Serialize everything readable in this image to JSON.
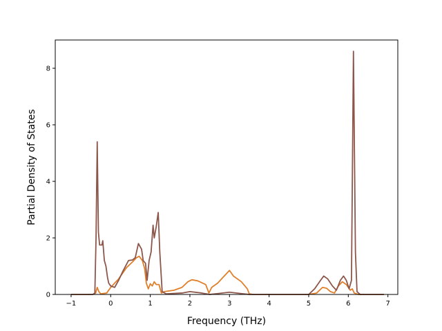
{
  "chart_data": {
    "type": "line",
    "title": "",
    "xlabel": "Frequency (THz)",
    "ylabel": "Partial Density of States",
    "xlim": [
      -1.4,
      7.25
    ],
    "ylim": [
      0,
      9.0
    ],
    "xticks": [
      -1,
      0,
      1,
      2,
      3,
      4,
      5,
      6,
      7
    ],
    "yticks": [
      0,
      2,
      4,
      6,
      8
    ],
    "grid": false,
    "legend": "none",
    "series": [
      {
        "color": "#e07f2a",
        "points": [
          [
            -1.0,
            0
          ],
          [
            -0.45,
            0
          ],
          [
            -0.38,
            0.05
          ],
          [
            -0.34,
            0.25
          ],
          [
            -0.3,
            0.1
          ],
          [
            -0.25,
            0.02
          ],
          [
            -0.1,
            0.05
          ],
          [
            0.0,
            0.25
          ],
          [
            0.2,
            0.55
          ],
          [
            0.4,
            0.95
          ],
          [
            0.55,
            1.15
          ],
          [
            0.65,
            1.3
          ],
          [
            0.72,
            1.35
          ],
          [
            0.8,
            1.2
          ],
          [
            0.86,
            0.9
          ],
          [
            0.9,
            0.4
          ],
          [
            0.95,
            0.2
          ],
          [
            1.0,
            0.38
          ],
          [
            1.05,
            0.3
          ],
          [
            1.1,
            0.45
          ],
          [
            1.15,
            0.35
          ],
          [
            1.22,
            0.35
          ],
          [
            1.28,
            0.05
          ],
          [
            1.35,
            0.1
          ],
          [
            1.6,
            0.15
          ],
          [
            1.8,
            0.25
          ],
          [
            1.95,
            0.45
          ],
          [
            2.05,
            0.52
          ],
          [
            2.2,
            0.48
          ],
          [
            2.4,
            0.35
          ],
          [
            2.48,
            0.05
          ],
          [
            2.55,
            0.25
          ],
          [
            2.7,
            0.4
          ],
          [
            2.9,
            0.7
          ],
          [
            3.0,
            0.85
          ],
          [
            3.1,
            0.65
          ],
          [
            3.3,
            0.45
          ],
          [
            3.45,
            0.2
          ],
          [
            3.5,
            0.02
          ],
          [
            3.6,
            0
          ],
          [
            5.0,
            0
          ],
          [
            5.2,
            0.05
          ],
          [
            5.35,
            0.25
          ],
          [
            5.45,
            0.22
          ],
          [
            5.55,
            0.1
          ],
          [
            5.65,
            0.05
          ],
          [
            5.75,
            0.3
          ],
          [
            5.85,
            0.45
          ],
          [
            5.95,
            0.35
          ],
          [
            6.05,
            0.15
          ],
          [
            6.1,
            0.2
          ],
          [
            6.15,
            0.05
          ],
          [
            6.25,
            0
          ],
          [
            6.9,
            0
          ]
        ]
      },
      {
        "color": "#8c564b",
        "points": [
          [
            -1.0,
            0
          ],
          [
            -0.45,
            0
          ],
          [
            -0.4,
            0.05
          ],
          [
            -0.37,
            2.0
          ],
          [
            -0.34,
            5.4
          ],
          [
            -0.31,
            2.2
          ],
          [
            -0.28,
            1.75
          ],
          [
            -0.22,
            1.75
          ],
          [
            -0.2,
            1.9
          ],
          [
            -0.16,
            1.2
          ],
          [
            -0.12,
            1.0
          ],
          [
            -0.08,
            0.6
          ],
          [
            -0.05,
            0.4
          ],
          [
            0.0,
            0.3
          ],
          [
            0.1,
            0.25
          ],
          [
            0.2,
            0.5
          ],
          [
            0.3,
            0.8
          ],
          [
            0.45,
            1.2
          ],
          [
            0.55,
            1.22
          ],
          [
            0.62,
            1.3
          ],
          [
            0.7,
            1.8
          ],
          [
            0.78,
            1.6
          ],
          [
            0.82,
            1.2
          ],
          [
            0.88,
            1.1
          ],
          [
            0.92,
            0.5
          ],
          [
            0.97,
            1.2
          ],
          [
            1.02,
            1.5
          ],
          [
            1.07,
            2.45
          ],
          [
            1.1,
            2.0
          ],
          [
            1.15,
            2.4
          ],
          [
            1.2,
            2.9
          ],
          [
            1.24,
            1.5
          ],
          [
            1.3,
            0.1
          ],
          [
            1.4,
            0.02
          ],
          [
            1.8,
            0.05
          ],
          [
            2.0,
            0.1
          ],
          [
            2.3,
            0.05
          ],
          [
            2.5,
            0
          ],
          [
            2.7,
            0.03
          ],
          [
            3.0,
            0.08
          ],
          [
            3.3,
            0.03
          ],
          [
            3.5,
            0
          ],
          [
            5.0,
            0
          ],
          [
            5.15,
            0.2
          ],
          [
            5.3,
            0.5
          ],
          [
            5.38,
            0.65
          ],
          [
            5.48,
            0.55
          ],
          [
            5.6,
            0.3
          ],
          [
            5.7,
            0.15
          ],
          [
            5.8,
            0.5
          ],
          [
            5.88,
            0.65
          ],
          [
            5.95,
            0.5
          ],
          [
            6.02,
            0.2
          ],
          [
            6.08,
            0.5
          ],
          [
            6.13,
            8.6
          ],
          [
            6.18,
            1.5
          ],
          [
            6.22,
            0.1
          ],
          [
            6.3,
            0
          ],
          [
            6.9,
            0
          ]
        ]
      }
    ]
  }
}
